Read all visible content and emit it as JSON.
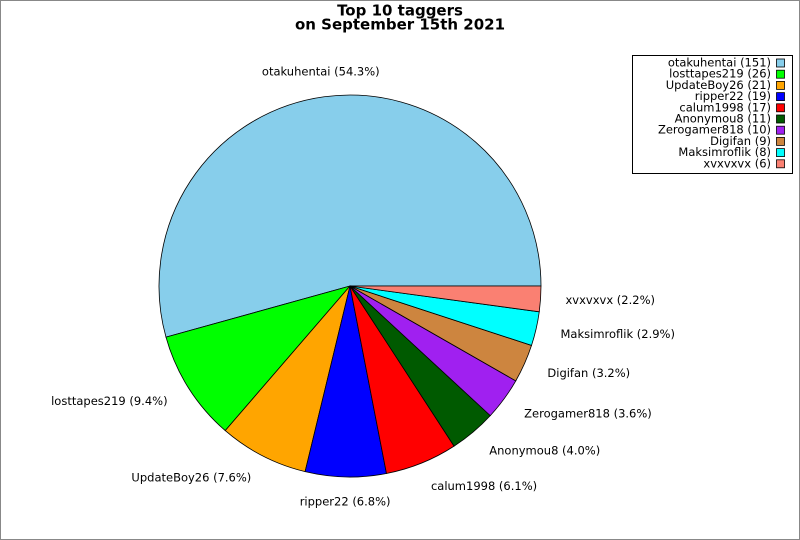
{
  "chart_data": {
    "type": "pie",
    "title": "Top 10 taggers",
    "subtitle": "on September 15th 2021",
    "values": [
      151,
      26,
      21,
      19,
      17,
      11,
      10,
      9,
      8,
      6
    ],
    "value_labels": [
      "otakuhentai (54.3%)",
      "losttapes219 (9.4%)",
      "UpdateBoy26 (7.6%)",
      "ripper22 (6.8%)",
      "calum1998 (6.1%)",
      "Anonymou8 (4.0%)",
      "Zerogamer818 (3.6%)",
      "Digifan (3.2%)",
      "Maksimroflik (2.9%)",
      "xvxvxvx (2.2%)"
    ],
    "legend_labels": [
      "otakuhentai (151)",
      "losttapes219 (26)",
      "UpdateBoy26 (21)",
      "ripper22 (19)",
      "calum1998 (17)",
      "Anonymou8 (11)",
      "Zerogamer818 (10)",
      "Digifan (9)",
      "Maksimroflik (8)",
      "xvxvxvx (6)"
    ],
    "colors": [
      "#87ceeb",
      "#00ff00",
      "#ffa500",
      "#0000ff",
      "#ff0000",
      "#005a00",
      "#a020f0",
      "#cd853f",
      "#00ffff",
      "#fa8072"
    ],
    "legend_position": "upper right"
  }
}
